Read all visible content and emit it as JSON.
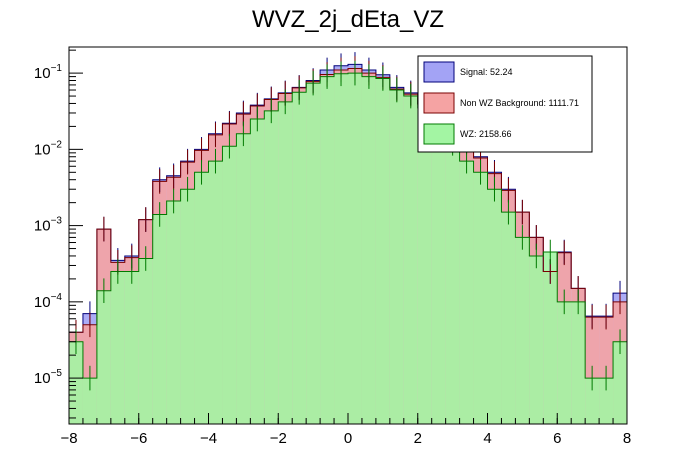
{
  "chart_data": {
    "type": "bar",
    "title": "WVZ_2j_dEta_VZ",
    "xlabel": "",
    "ylabel": "",
    "xlim": [
      -8,
      8
    ],
    "ylim": [
      2.5e-06,
      0.22
    ],
    "yscale": "log",
    "x_ticks": [
      {
        "value": -8,
        "label": "−8"
      },
      {
        "value": -6,
        "label": "−6"
      },
      {
        "value": -4,
        "label": "−4"
      },
      {
        "value": -2,
        "label": "−2"
      },
      {
        "value": 0,
        "label": "0"
      },
      {
        "value": 2,
        "label": "2"
      },
      {
        "value": 4,
        "label": "4"
      },
      {
        "value": 6,
        "label": "6"
      },
      {
        "value": 8,
        "label": "8"
      }
    ],
    "y_ticks": [
      {
        "value": 0.1,
        "base": "10",
        "exp": "−1"
      },
      {
        "value": 0.01,
        "base": "10",
        "exp": "−2"
      },
      {
        "value": 0.001,
        "base": "10",
        "exp": "−3"
      },
      {
        "value": 0.0001,
        "base": "10",
        "exp": "−4"
      },
      {
        "value": 1e-05,
        "base": "10",
        "exp": "−5"
      }
    ],
    "grid": false,
    "legend_placement": "top-right",
    "bin_edges_start": -8,
    "bin_width": 0.4,
    "series": [
      {
        "name": "Signal: 52.24",
        "fill": "#a3a3f5",
        "edge": "#00007a",
        "values": [
          4e-05,
          7e-05,
          0.0009,
          0.00035,
          0.0004,
          0.0012,
          0.004,
          0.0045,
          0.007,
          0.01,
          0.016,
          0.022,
          0.03,
          0.038,
          0.046,
          0.055,
          0.065,
          0.08,
          0.11,
          0.125,
          0.13,
          0.11,
          0.095,
          0.065,
          0.055,
          0.04,
          0.027,
          0.02,
          0.013,
          0.008,
          0.005,
          0.003,
          0.0015,
          0.0007,
          0.00025,
          0.00045,
          0.00015,
          6.5e-05,
          6.5e-05,
          0.00013
        ]
      },
      {
        "name": "Non WZ Background: 1111.71",
        "fill": "#f5a3a3",
        "edge": "#7a0000",
        "values": [
          4e-05,
          5e-05,
          0.0009,
          0.00033,
          0.00038,
          0.0012,
          0.0038,
          0.0043,
          0.0068,
          0.0097,
          0.0155,
          0.0215,
          0.029,
          0.037,
          0.045,
          0.054,
          0.064,
          0.078,
          0.096,
          0.11,
          0.115,
          0.1,
          0.088,
          0.062,
          0.053,
          0.039,
          0.026,
          0.019,
          0.0125,
          0.0077,
          0.0048,
          0.0029,
          0.0015,
          0.0007,
          0.00025,
          0.00044,
          0.00015,
          6.3e-05,
          6.3e-05,
          0.0001
        ]
      },
      {
        "name": "WZ: 2158.66",
        "fill": "#a3f5a3",
        "edge": "#007a00",
        "values": [
          3e-05,
          1e-05,
          0.00014,
          0.00025,
          0.00025,
          0.00037,
          0.0014,
          0.0021,
          0.003,
          0.005,
          0.007,
          0.011,
          0.016,
          0.025,
          0.032,
          0.042,
          0.056,
          0.074,
          0.09,
          0.098,
          0.1,
          0.09,
          0.085,
          0.06,
          0.05,
          0.035,
          0.02,
          0.012,
          0.007,
          0.005,
          0.003,
          0.0015,
          0.0007,
          0.0004,
          0.00045,
          0.0001,
          0.0001,
          1e-05,
          1e-05,
          3e-05
        ]
      }
    ]
  }
}
